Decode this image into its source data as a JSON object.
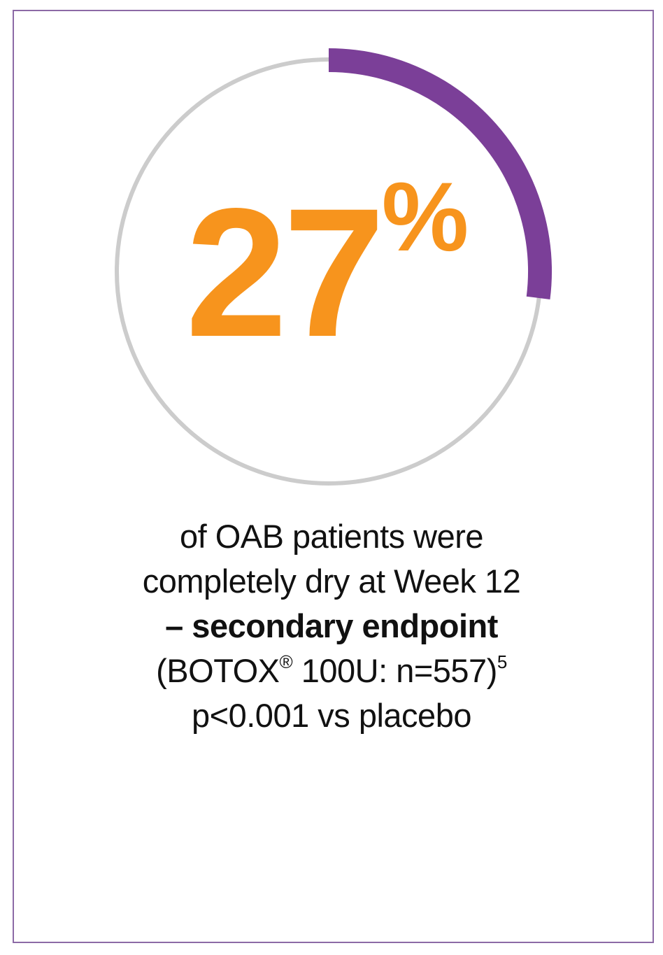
{
  "chart_data": {
    "type": "gauge",
    "value": 27,
    "unit": "%",
    "range": [
      0,
      100
    ],
    "color": "#7b3f98",
    "track_color": "#cccccc",
    "label_color": "#f7941d"
  },
  "caption": {
    "line1": "of OAB patients were",
    "line2": "completely dry at Week 12",
    "line3": "– secondary endpoint",
    "line4": {
      "open": "(BOTOX",
      "mark": "®",
      "rest": " 100U: n=557)",
      "ref": "5"
    },
    "line5": "p<0.001 vs placebo"
  }
}
